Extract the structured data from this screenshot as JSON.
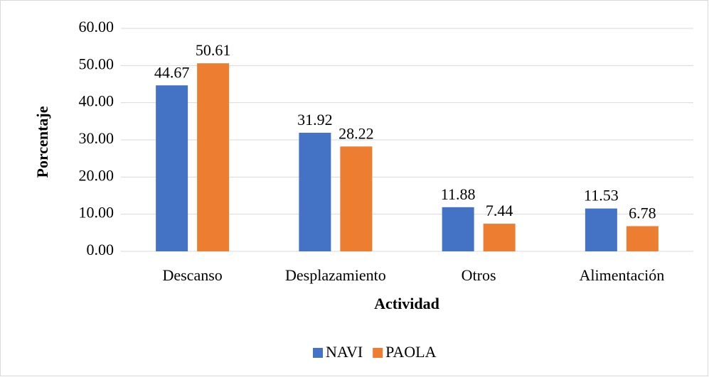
{
  "chart_data": {
    "type": "bar",
    "categories": [
      "Descanso",
      "Desplazamiento",
      "Otros",
      "Alimentación"
    ],
    "series": [
      {
        "name": "NAVI",
        "color": "#4472c4",
        "values": [
          44.67,
          31.92,
          11.88,
          11.53
        ]
      },
      {
        "name": "PAOLA",
        "color": "#ed7d31",
        "values": [
          50.61,
          28.22,
          7.44,
          6.78
        ]
      }
    ],
    "x_label": "Actividad",
    "y_label": "Porcentaje",
    "ylim": [
      0,
      60
    ],
    "yticks": [
      {
        "value": 0,
        "label": "0.00"
      },
      {
        "value": 10,
        "label": "10.00"
      },
      {
        "value": 20,
        "label": "20.00"
      },
      {
        "value": 30,
        "label": "30.00"
      },
      {
        "value": 40,
        "label": "40.00"
      },
      {
        "value": 50,
        "label": "50.00"
      },
      {
        "value": 60,
        "label": "60.00"
      }
    ],
    "grid": true,
    "legend": "bottom"
  }
}
